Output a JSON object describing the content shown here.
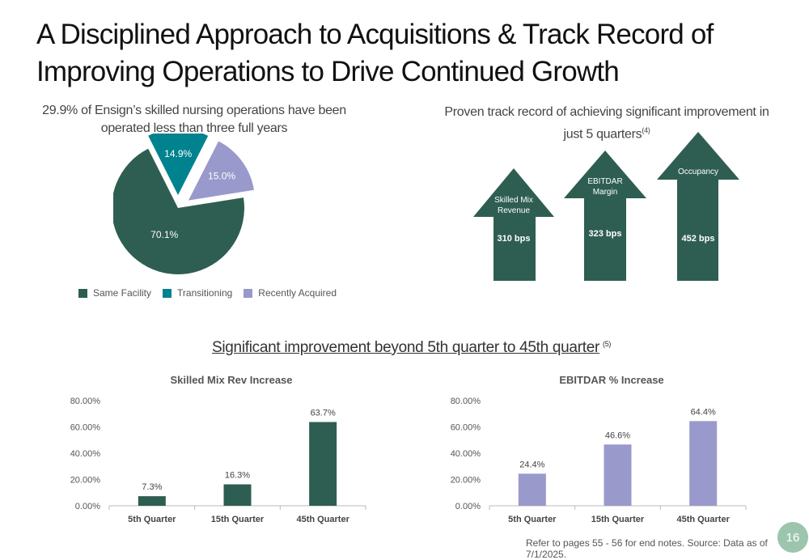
{
  "title_lines": [
    "A Disciplined Approach to Acquisitions & Track Record of",
    "Improving Operations to Drive Continued Growth"
  ],
  "pie_section": {
    "subtitle_line1": "29.9% of Ensign’s skilled nursing operations have been",
    "subtitle_line2": "operated less than three full years"
  },
  "arrow_section": {
    "subtitle_line1": "Proven track record of achieving significant improvement in",
    "subtitle_line2": "just 5 quarters",
    "subtitle_footnote": "(4)",
    "arrows": [
      {
        "label_lines": [
          "Skilled Mix",
          "Revenue"
        ],
        "value": "310 bps"
      },
      {
        "label_lines": [
          "EBITDAR",
          "Margin"
        ],
        "value": "323 bps"
      },
      {
        "label_lines": [
          "Occupancy"
        ],
        "value": "452 bps"
      }
    ]
  },
  "mid_heading": {
    "text": "Significant improvement beyond 5th quarter to 45th quarter",
    "footnote": "(5)"
  },
  "colors": {
    "dark_green": "#2e5e52",
    "teal": "#00838f",
    "lavender": "#9999cc",
    "badge": "#9cc5ad"
  },
  "footer": {
    "note": "Refer to pages 55 - 56 for end notes. Source: Data as of 7/1/2025.",
    "page_number": "16"
  },
  "chart_data": [
    {
      "type": "pie",
      "title": "29.9% of Ensign’s skilled nursing operations have been operated less than three full years",
      "labels": [
        "Same Facility",
        "Transitioning",
        "Recently Acquired"
      ],
      "values": [
        70.1,
        14.9,
        15.0
      ],
      "data_labels": [
        "70.1%",
        "14.9%",
        "15.0%"
      ],
      "colors": [
        "#2e5e52",
        "#00838f",
        "#9999cc"
      ],
      "legend": "bottom"
    },
    {
      "type": "bar",
      "title": "Skilled Mix Rev Increase",
      "categories": [
        "5th Quarter",
        "15th Quarter",
        "45th Quarter"
      ],
      "values": [
        7.3,
        16.3,
        63.7
      ],
      "data_labels": [
        "7.3%",
        "16.3%",
        "63.7%"
      ],
      "ylim": [
        0,
        80
      ],
      "yticks": [
        "0.00%",
        "20.00%",
        "40.00%",
        "60.00%",
        "80.00%"
      ],
      "color": "#2e5e52",
      "grid": false,
      "xlabel": "",
      "ylabel": ""
    },
    {
      "type": "bar",
      "title": "EBITDAR % Increase",
      "categories": [
        "5th Quarter",
        "15th Quarter",
        "45th Quarter"
      ],
      "values": [
        24.4,
        46.6,
        64.4
      ],
      "data_labels": [
        "24.4%",
        "46.6%",
        "64.4%"
      ],
      "ylim": [
        0,
        80
      ],
      "yticks": [
        "0.00%",
        "20.00%",
        "40.00%",
        "60.00%",
        "80.00%"
      ],
      "color": "#9999cc",
      "grid": false,
      "xlabel": "",
      "ylabel": ""
    }
  ]
}
